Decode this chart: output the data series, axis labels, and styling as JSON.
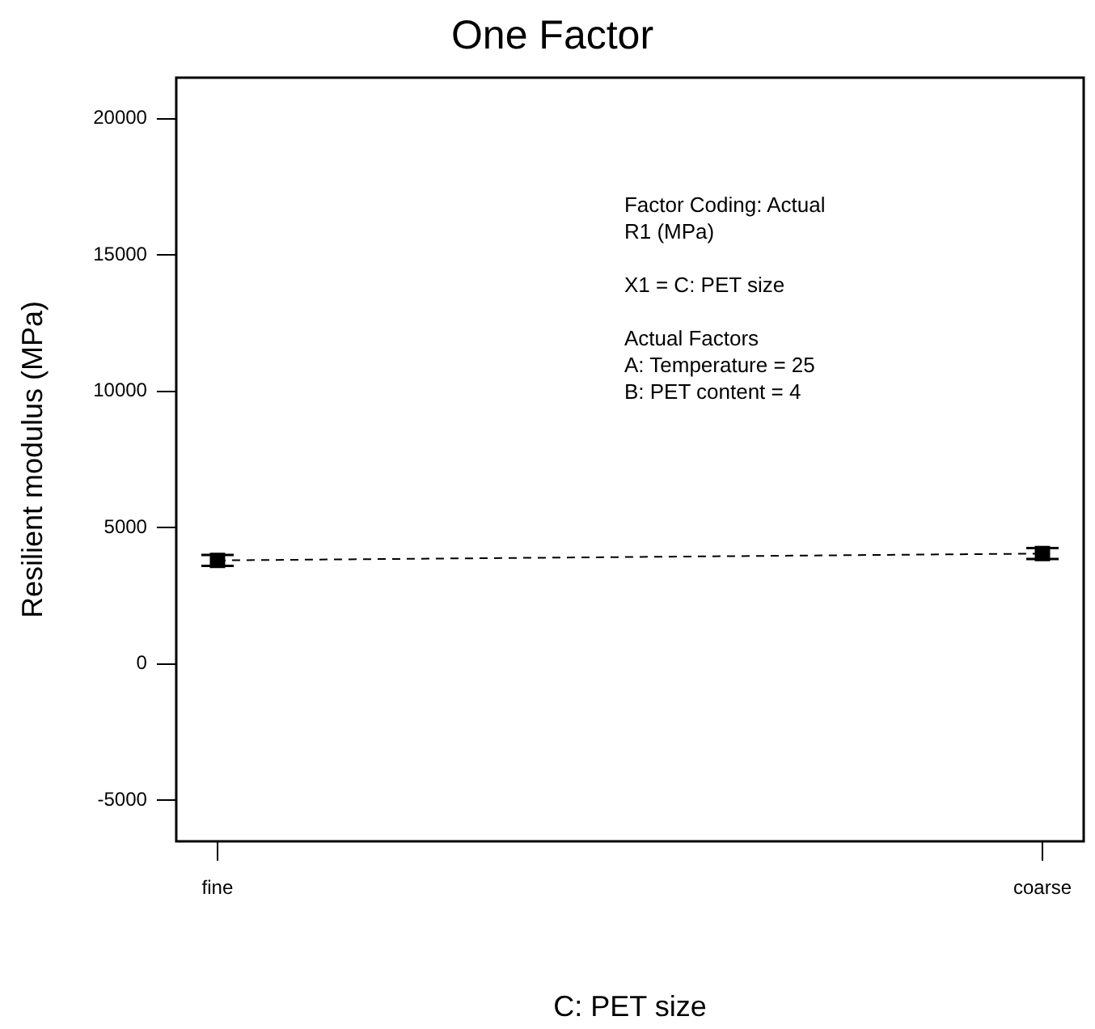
{
  "chart_data": {
    "type": "line",
    "title": "One Factor",
    "xlabel": "C: PET size",
    "ylabel": "Resilient modulus (MPa)",
    "categories": [
      "fine",
      "coarse"
    ],
    "series": [
      {
        "name": null,
        "color": "#000000",
        "values": [
          3800,
          4050
        ],
        "errors": [
          200,
          200
        ]
      }
    ],
    "ylim": [
      -6500,
      21500
    ],
    "yticks": [
      -5000,
      0,
      5000,
      10000,
      15000,
      20000
    ],
    "marker": "square",
    "line_style": "dashed",
    "grid": false,
    "legend": false,
    "annotations": [
      "Factor Coding: Actual",
      "R1 (MPa)",
      "X1 = C: PET size",
      "Actual Factors",
      "A: Temperature = 25",
      "B: PET content = 4"
    ]
  }
}
